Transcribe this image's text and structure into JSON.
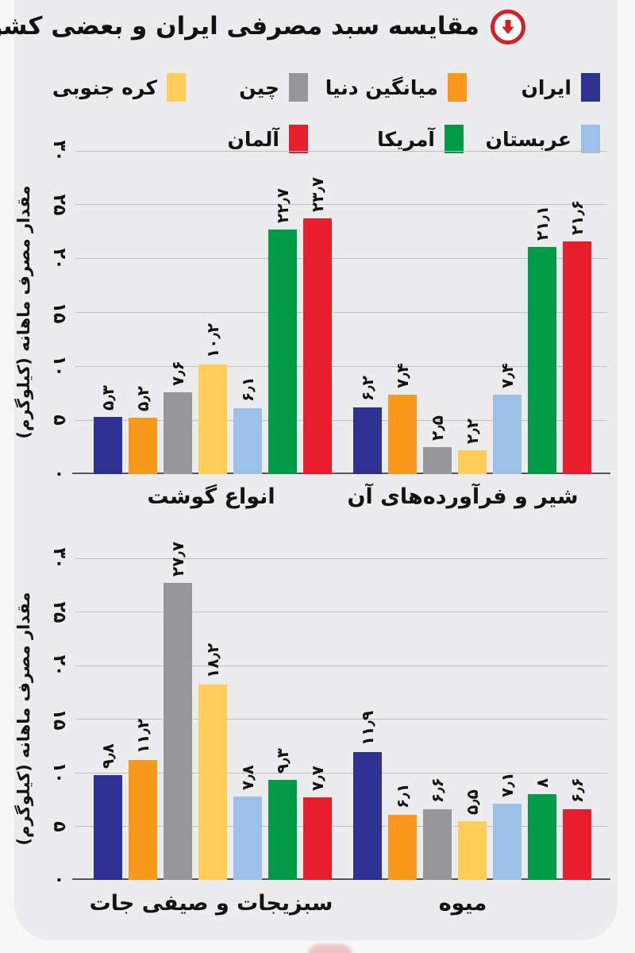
{
  "page": {
    "title": "مقایسه سبد مصرفی ایران و بعضی کشورها",
    "title_icon": "circle-down-arrow"
  },
  "legend": {
    "rows": [
      [
        {
          "label": "ایران",
          "color": "#2e3192"
        },
        {
          "label": "میانگین دنیا",
          "color": "#f8981d"
        },
        {
          "label": "چین",
          "color": "#97979b"
        },
        {
          "label": "کره جنوبی",
          "color": "#fcce58"
        }
      ],
      [
        {
          "label": "عربستان",
          "color": "#9cc0e7"
        },
        {
          "label": "آمریکا",
          "color": "#019a48"
        },
        {
          "label": "آلمان",
          "color": "#e8202e"
        }
      ]
    ]
  },
  "chart_data": [
    {
      "type": "bar",
      "title": "",
      "xlabel": "",
      "ylabel": "مقدار مصرف ماهانه (کیلوگرم)",
      "ylim": [
        0,
        30
      ],
      "yticks": [
        0,
        5,
        10,
        15,
        20,
        25,
        30
      ],
      "ytick_labels": [
        "۰",
        "۵",
        "۱۰",
        "۱۵",
        "۲۰",
        "۲۵",
        "۳۰"
      ],
      "grid": true,
      "legend_position": "top",
      "categories": [
        "انواع گوشت",
        "شیر و فرآورده‌های آن"
      ],
      "series": [
        {
          "name": "ایران",
          "color": "#2e3192",
          "values": [
            5.3,
            6.2
          ],
          "labels": [
            "۵٫۳",
            "۶٫۲"
          ]
        },
        {
          "name": "میانگین دنیا",
          "color": "#f8981d",
          "values": [
            5.2,
            7.4
          ],
          "labels": [
            "۵٫۲",
            "۷٫۴"
          ]
        },
        {
          "name": "چین",
          "color": "#97979b",
          "values": [
            7.6,
            2.5
          ],
          "labels": [
            "۷٫۶",
            "۲٫۵"
          ]
        },
        {
          "name": "کره جنوبی",
          "color": "#fcce58",
          "values": [
            10.2,
            2.2
          ],
          "labels": [
            "۱۰٫۲",
            "۲٫۲"
          ]
        },
        {
          "name": "عربستان",
          "color": "#9cc0e7",
          "values": [
            6.1,
            7.4
          ],
          "labels": [
            "۶٫۱",
            "۷٫۴"
          ]
        },
        {
          "name": "آمریکا",
          "color": "#019a48",
          "values": [
            22.7,
            21.1
          ],
          "labels": [
            "۲۲٫۷",
            "۲۱٫۱"
          ]
        },
        {
          "name": "آلمان",
          "color": "#e8202e",
          "values": [
            23.7,
            21.6
          ],
          "labels": [
            "۲۳٫۷",
            "۲۱٫۶"
          ]
        }
      ]
    },
    {
      "type": "bar",
      "title": "",
      "xlabel": "",
      "ylabel": "مقدار مصرف ماهانه (کیلوگرم)",
      "ylim": [
        0,
        30
      ],
      "yticks": [
        0,
        5,
        10,
        15,
        20,
        25,
        30
      ],
      "ytick_labels": [
        "۰",
        "۵",
        "۱۰",
        "۱۵",
        "۲۰",
        "۲۵",
        "۳۰"
      ],
      "grid": true,
      "legend_position": "top",
      "categories": [
        "سبزیجات و صیفی جات",
        "میوه"
      ],
      "series": [
        {
          "name": "ایران",
          "color": "#2e3192",
          "values": [
            9.8,
            11.9
          ],
          "labels": [
            "۹٫۸",
            "۱۱٫۹"
          ]
        },
        {
          "name": "میانگین دنیا",
          "color": "#f8981d",
          "values": [
            11.2,
            6.1
          ],
          "labels": [
            "۱۱٫۲",
            "۶٫۱"
          ]
        },
        {
          "name": "چین",
          "color": "#97979b",
          "values": [
            27.7,
            6.6
          ],
          "labels": [
            "۲۷٫۷",
            "۶٫۶"
          ]
        },
        {
          "name": "کره جنوبی",
          "color": "#fcce58",
          "values": [
            18.2,
            5.5
          ],
          "labels": [
            "۱۸٫۲",
            "۵٫۵"
          ]
        },
        {
          "name": "عربستان",
          "color": "#9cc0e7",
          "values": [
            7.8,
            7.1
          ],
          "labels": [
            "۷٫۸",
            "۷٫۱"
          ]
        },
        {
          "name": "آمریکا",
          "color": "#019a48",
          "values": [
            9.3,
            8
          ],
          "labels": [
            "۹٫۳",
            "۸"
          ]
        },
        {
          "name": "آلمان",
          "color": "#e8202e",
          "values": [
            7.7,
            6.6
          ],
          "labels": [
            "۷٫۷",
            "۶٫۶"
          ]
        }
      ]
    }
  ]
}
